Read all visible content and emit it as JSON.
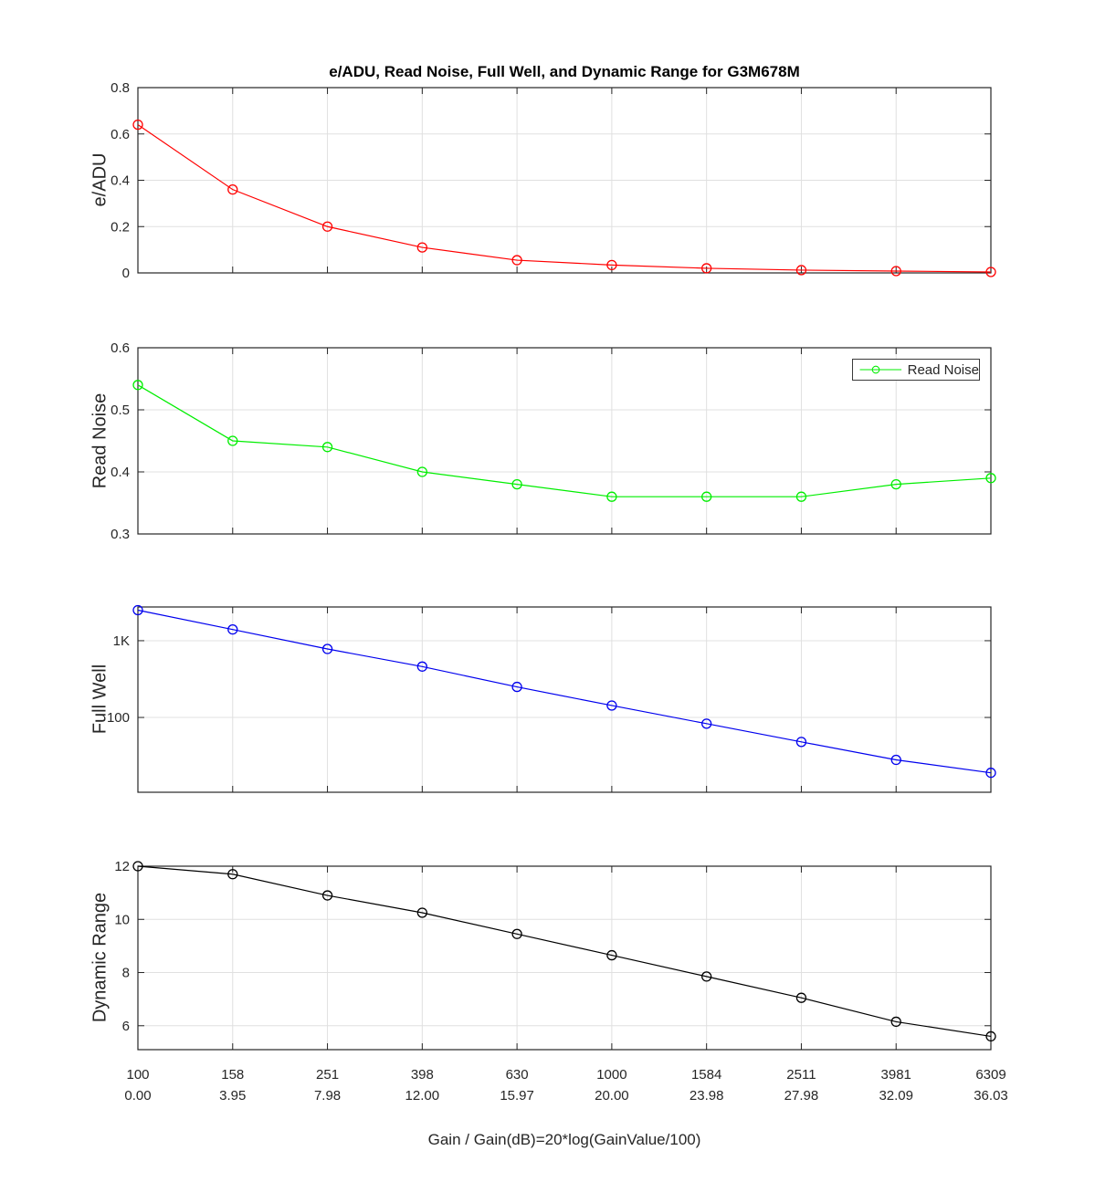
{
  "title": "e/ADU, Read Noise, Full Well, and Dynamic Range for G3M678M",
  "x_axis": {
    "label": "Gain / Gain(dB)=20*log(GainValue/100)",
    "tick_labels_gain": [
      "100",
      "158",
      "251",
      "398",
      "630",
      "1000",
      "1584",
      "2511",
      "3981",
      "6309"
    ],
    "tick_labels_db": [
      "0.00",
      "3.95",
      "7.98",
      "12.00",
      "15.97",
      "20.00",
      "23.98",
      "27.98",
      "32.09",
      "36.03"
    ]
  },
  "legend": {
    "label": "Read Noise",
    "series_color": "#00ee00"
  },
  "colors": {
    "eadu_series": "#ff0000",
    "read_noise_series": "#00ee00",
    "full_well_series": "#0000ee",
    "dynamic_range_series": "#000000",
    "grid": "#e0e0e0",
    "axis": "#262626",
    "background": "#ffffff"
  },
  "chart_data": [
    {
      "type": "line",
      "name": "e/ADU",
      "ylabel": "e/ADU",
      "color": "#ff0000",
      "marker": "circle",
      "yscale": "linear",
      "ylim": [
        0,
        0.8
      ],
      "yticks": [
        0,
        0.2,
        0.4,
        0.6,
        0.8
      ],
      "ytick_labels": [
        "0",
        "0.2",
        "0.4",
        "0.6",
        "0.8"
      ],
      "x_gain": [
        100,
        158,
        251,
        398,
        630,
        1000,
        1584,
        2511,
        3981,
        6309
      ],
      "values": [
        0.64,
        0.36,
        0.2,
        0.11,
        0.055,
        0.034,
        0.02,
        0.012,
        0.008,
        0.004
      ],
      "grid": true
    },
    {
      "type": "line",
      "name": "Read Noise",
      "ylabel": "Read Noise",
      "color": "#00ee00",
      "marker": "circle",
      "yscale": "linear",
      "ylim": [
        0.3,
        0.6
      ],
      "yticks": [
        0.3,
        0.4,
        0.5,
        0.6
      ],
      "ytick_labels": [
        "0.3",
        "0.4",
        "0.5",
        "0.6"
      ],
      "x_gain": [
        100,
        158,
        251,
        398,
        630,
        1000,
        1584,
        2511,
        3981,
        6309
      ],
      "values": [
        0.54,
        0.45,
        0.44,
        0.4,
        0.38,
        0.36,
        0.36,
        0.36,
        0.38,
        0.39
      ],
      "legend": "Read Noise",
      "legend_position": "top-right",
      "grid": true
    },
    {
      "type": "line",
      "name": "Full Well",
      "ylabel": "Full Well",
      "color": "#0000ee",
      "marker": "circle",
      "yscale": "log",
      "ylim": [
        10.6,
        2750
      ],
      "yticks": [
        100,
        1000
      ],
      "ytick_labels": [
        "100",
        "1K"
      ],
      "x_gain": [
        100,
        158,
        251,
        398,
        630,
        1000,
        1584,
        2511,
        3981,
        6309
      ],
      "values": [
        2500,
        1400,
        780,
        460,
        250,
        143,
        83,
        48,
        28,
        19
      ],
      "grid": true
    },
    {
      "type": "line",
      "name": "Dynamic Range",
      "ylabel": "Dynamic Range",
      "color": "#000000",
      "marker": "circle",
      "yscale": "linear",
      "ylim": [
        5.1,
        12
      ],
      "yticks": [
        6,
        8,
        10,
        12
      ],
      "ytick_labels": [
        "6",
        "8",
        "10",
        "12"
      ],
      "x_gain": [
        100,
        158,
        251,
        398,
        630,
        1000,
        1584,
        2511,
        3981,
        6309
      ],
      "values": [
        12.0,
        11.7,
        10.9,
        10.25,
        9.45,
        8.65,
        7.85,
        7.05,
        6.15,
        5.6
      ],
      "grid": true
    }
  ]
}
